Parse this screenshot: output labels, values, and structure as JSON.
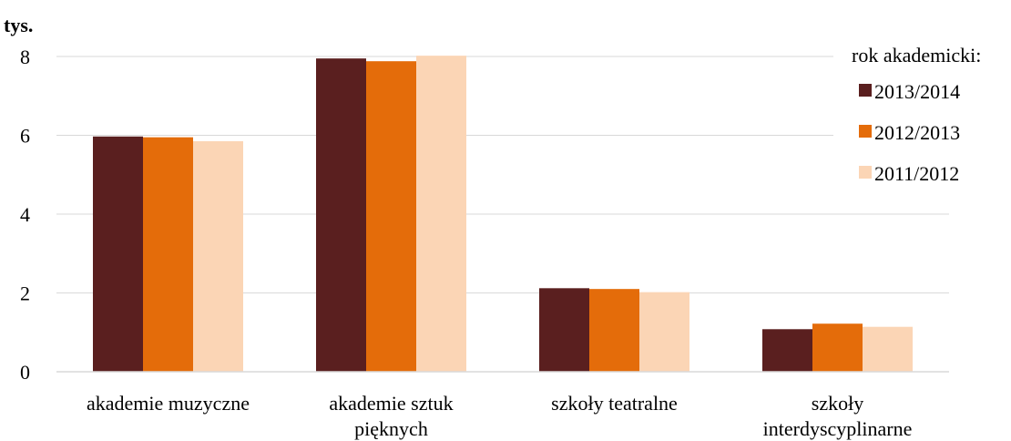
{
  "chart_data": {
    "type": "bar",
    "unit_label": "tys.",
    "categories": [
      [
        "akademie muzyczne"
      ],
      [
        "akademie sztuk",
        "pięknych"
      ],
      [
        "szkoły teatralne"
      ],
      [
        "szkoły",
        "interdyscyplinarne"
      ]
    ],
    "series": [
      {
        "name": "2013/2014",
        "color": "#5a1f1f",
        "values": [
          5.97,
          7.95,
          2.12,
          1.08
        ]
      },
      {
        "name": "2012/2013",
        "color": "#e46c0a",
        "values": [
          5.95,
          7.88,
          2.1,
          1.22
        ]
      },
      {
        "name": "2011/2012",
        "color": "#fbd5b5",
        "values": [
          5.85,
          8.02,
          2.02,
          1.14
        ]
      }
    ],
    "ylim": [
      0,
      8
    ],
    "yticks": [
      0,
      2,
      4,
      6,
      8
    ],
    "grid": true,
    "legend": {
      "title": "rok akademicki:",
      "position": "top-right"
    }
  }
}
